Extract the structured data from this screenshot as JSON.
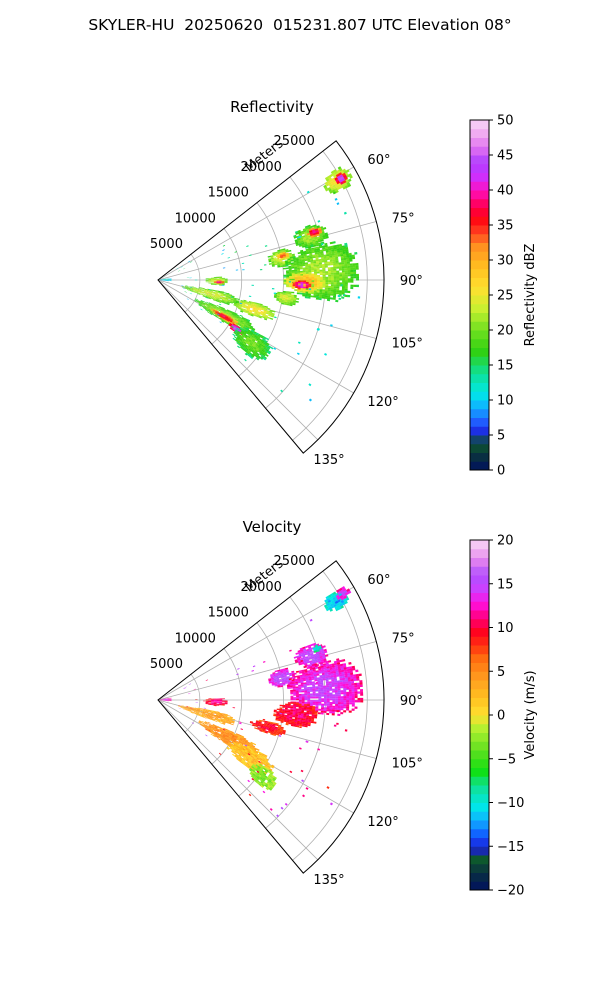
{
  "figure": {
    "title": "SKYLER-HU  20250620  015231.807 UTC Elevation 08°"
  },
  "chart_data": [
    {
      "type": "heatmap",
      "projection": "polar-sector",
      "title": "Reflectivity",
      "radial_label": "Meters",
      "radial_ticks": [
        5000,
        10000,
        15000,
        20000,
        25000
      ],
      "radial_tick_labels": [
        "5000",
        "10000",
        "15000",
        "20000",
        "25000"
      ],
      "rmax": 27000,
      "azimuth_range": [
        52,
        140
      ],
      "azimuth_ticks": [
        60,
        75,
        90,
        105,
        120,
        135
      ],
      "azimuth_tick_labels": [
        "60°",
        "75°",
        "90°",
        "105°",
        "120°",
        "135°"
      ],
      "grid": true,
      "colorbar": {
        "label": "Reflectivity dBZ",
        "range": [
          0,
          50
        ],
        "ticks": [
          0,
          5,
          10,
          15,
          20,
          25,
          30,
          35,
          40,
          45,
          50
        ],
        "tick_labels": [
          "0",
          "5",
          "10",
          "15",
          "20",
          "25",
          "30",
          "35",
          "40",
          "45",
          "50"
        ]
      },
      "echoes": [
        {
          "az": 88,
          "r": 900,
          "daz": 9,
          "dr": 700,
          "value": 12
        },
        {
          "az": 61,
          "r": 24500,
          "daz": 3,
          "dr": 1800,
          "value": 26
        },
        {
          "az": 61,
          "r": 25000,
          "daz": 1.5,
          "dr": 700,
          "value": 44
        },
        {
          "az": 74,
          "r": 19000,
          "daz": 4,
          "dr": 2000,
          "value": 22
        },
        {
          "az": 73,
          "r": 19500,
          "daz": 1.6,
          "dr": 900,
          "value": 39
        },
        {
          "az": 80,
          "r": 15000,
          "daz": 4,
          "dr": 1600,
          "value": 24
        },
        {
          "az": 79,
          "r": 15200,
          "daz": 1.5,
          "dr": 700,
          "value": 34
        },
        {
          "az": 91,
          "r": 7000,
          "daz": 4,
          "dr": 1300,
          "value": 24
        },
        {
          "az": 92,
          "r": 7300,
          "daz": 1.5,
          "dr": 600,
          "value": 40
        },
        {
          "az": 87,
          "r": 19500,
          "daz": 10,
          "dr": 4500,
          "value": 22
        },
        {
          "az": 91,
          "r": 17500,
          "daz": 4,
          "dr": 2500,
          "value": 30
        },
        {
          "az": 92,
          "r": 17200,
          "daz": 1.8,
          "dr": 1100,
          "value": 43
        },
        {
          "az": 98,
          "r": 15500,
          "daz": 3,
          "dr": 1500,
          "value": 24
        },
        {
          "az": 107,
          "r": 12000,
          "daz": 4,
          "dr": 2500,
          "value": 26
        },
        {
          "az": 105,
          "r": 6500,
          "daz": 5,
          "dr": 3500,
          "value": 24
        },
        {
          "az": 118,
          "r": 9000,
          "daz": 5,
          "dr": 4000,
          "value": 22
        },
        {
          "az": 119,
          "r": 9000,
          "daz": 2.2,
          "dr": 1800,
          "value": 38
        },
        {
          "az": 122,
          "r": 11000,
          "daz": 2,
          "dr": 1000,
          "value": 46
        },
        {
          "az": 124,
          "r": 13500,
          "daz": 6,
          "dr": 2500,
          "value": 20
        }
      ]
    },
    {
      "type": "heatmap",
      "projection": "polar-sector",
      "title": "Velocity",
      "radial_label": "Meters",
      "radial_ticks": [
        5000,
        10000,
        15000,
        20000,
        25000
      ],
      "radial_tick_labels": [
        "5000",
        "10000",
        "15000",
        "20000",
        "25000"
      ],
      "rmax": 27000,
      "azimuth_range": [
        52,
        140
      ],
      "azimuth_ticks": [
        60,
        75,
        90,
        105,
        120,
        135
      ],
      "azimuth_tick_labels": [
        "60°",
        "75°",
        "90°",
        "105°",
        "120°",
        "135°"
      ],
      "grid": true,
      "colorbar": {
        "label": "Velocity (m/s)",
        "range": [
          -20,
          20
        ],
        "ticks": [
          -20,
          -15,
          -10,
          -5,
          0,
          5,
          10,
          15,
          20
        ],
        "tick_labels": [
          "−20",
          "−15",
          "−10",
          "−5",
          "0",
          "5",
          "10",
          "15",
          "20"
        ]
      },
      "echoes": [
        {
          "az": 88,
          "r": 900,
          "daz": 9,
          "dr": 700,
          "value": 15
        },
        {
          "az": 61,
          "r": 24300,
          "daz": 2.5,
          "dr": 1500,
          "value": -12
        },
        {
          "az": 60,
          "r": 25500,
          "daz": 1.5,
          "dr": 900,
          "value": 15
        },
        {
          "az": 74,
          "r": 19000,
          "daz": 4,
          "dr": 2000,
          "value": 16
        },
        {
          "az": 72,
          "r": 20000,
          "daz": 1.2,
          "dr": 500,
          "value": -11
        },
        {
          "az": 80,
          "r": 15000,
          "daz": 4,
          "dr": 1600,
          "value": 16
        },
        {
          "az": 92,
          "r": 7000,
          "daz": 4,
          "dr": 1300,
          "value": 12
        },
        {
          "az": 86,
          "r": 20000,
          "daz": 9,
          "dr": 4500,
          "value": 15
        },
        {
          "az": 96,
          "r": 16500,
          "daz": 5,
          "dr": 2600,
          "value": 11
        },
        {
          "az": 104,
          "r": 13500,
          "daz": 3,
          "dr": 2200,
          "value": 10
        },
        {
          "az": 106,
          "r": 6000,
          "daz": 5,
          "dr": 3500,
          "value": 4
        },
        {
          "az": 118,
          "r": 9500,
          "daz": 5,
          "dr": 4000,
          "value": 5
        },
        {
          "az": 122,
          "r": 13000,
          "daz": 5,
          "dr": 3000,
          "value": 2
        },
        {
          "az": 126,
          "r": 15500,
          "daz": 4,
          "dr": 1800,
          "value": -3
        }
      ]
    }
  ]
}
